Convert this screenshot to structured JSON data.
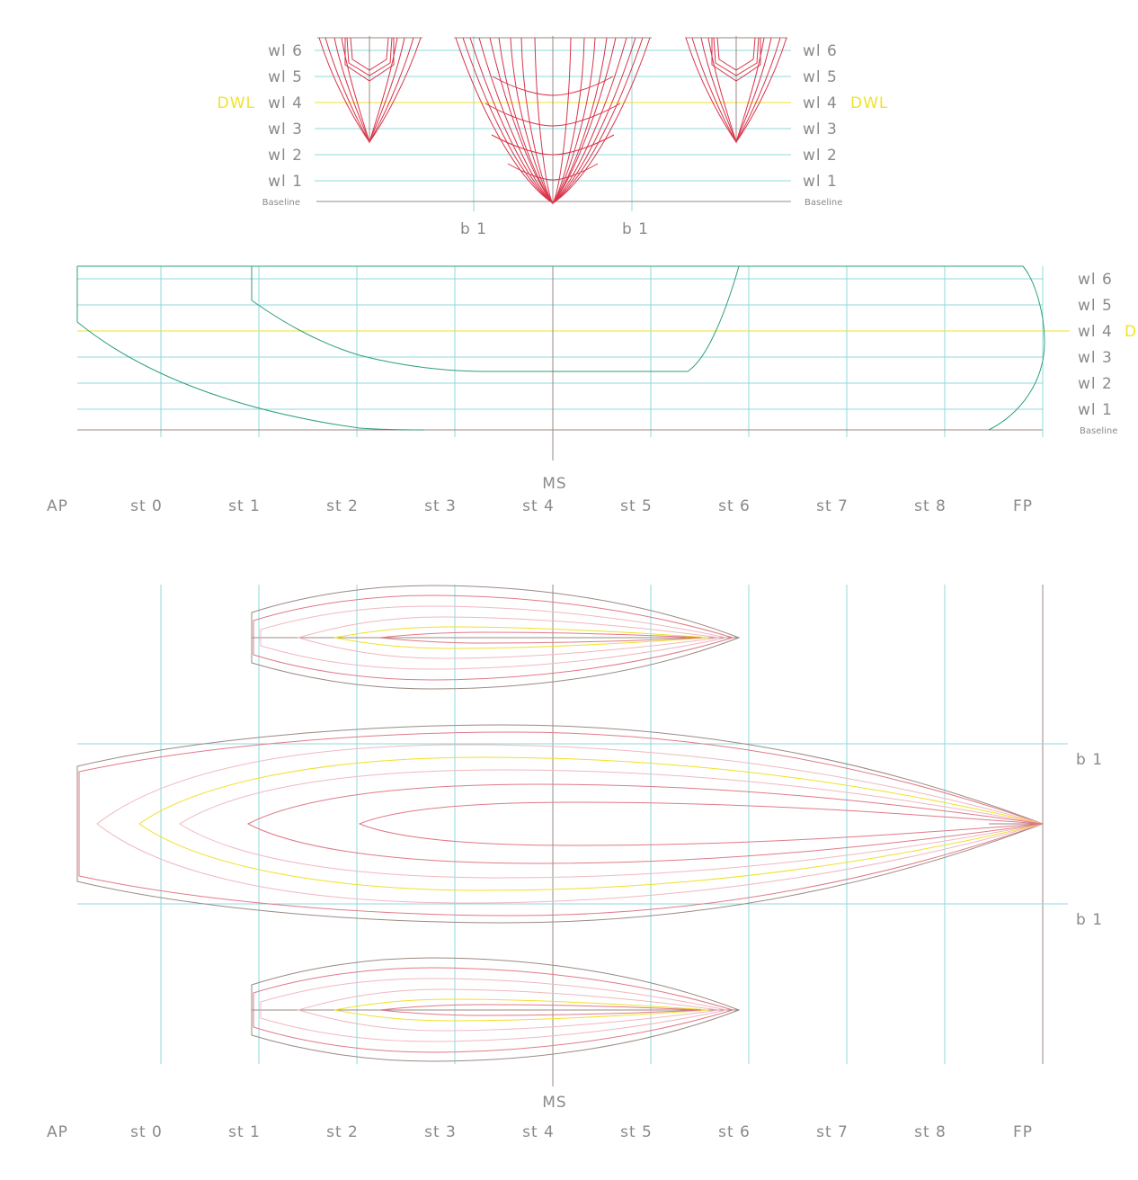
{
  "colors": {
    "grid": "#8fd8de",
    "dwl": "#f0e02a",
    "section": "#d8344a",
    "section_light": "#e8a0a8",
    "profile": "#2f9e7a",
    "plan": "#e07a88",
    "plan_light": "#f0b8c0",
    "outline": "#9a8a82",
    "text": "#8a8a8a"
  },
  "body_plan": {
    "waterlines": [
      "wl 6",
      "wl 5",
      "wl 4",
      "wl 3",
      "wl 2",
      "wl 1"
    ],
    "baseline_label": "Baseline",
    "dwl_label": "DWL",
    "buttock_label": "b 1"
  },
  "profile": {
    "waterlines": [
      "wl 6",
      "wl 5",
      "wl 4",
      "wl 3",
      "wl 2",
      "wl 1"
    ],
    "dwl_label": "D'",
    "baseline_label": "Baseline",
    "midship_label": "MS",
    "stations": [
      "AP",
      "st 0",
      "st 1",
      "st 2",
      "st 3",
      "st 4",
      "st 5",
      "st 6",
      "st 7",
      "st 8",
      "FP"
    ]
  },
  "plan_view": {
    "buttock_label": "b 1",
    "midship_label": "MS",
    "stations": [
      "AP",
      "st 0",
      "st 1",
      "st 2",
      "st 3",
      "st 4",
      "st 5",
      "st 6",
      "st 7",
      "st 8",
      "FP"
    ]
  }
}
